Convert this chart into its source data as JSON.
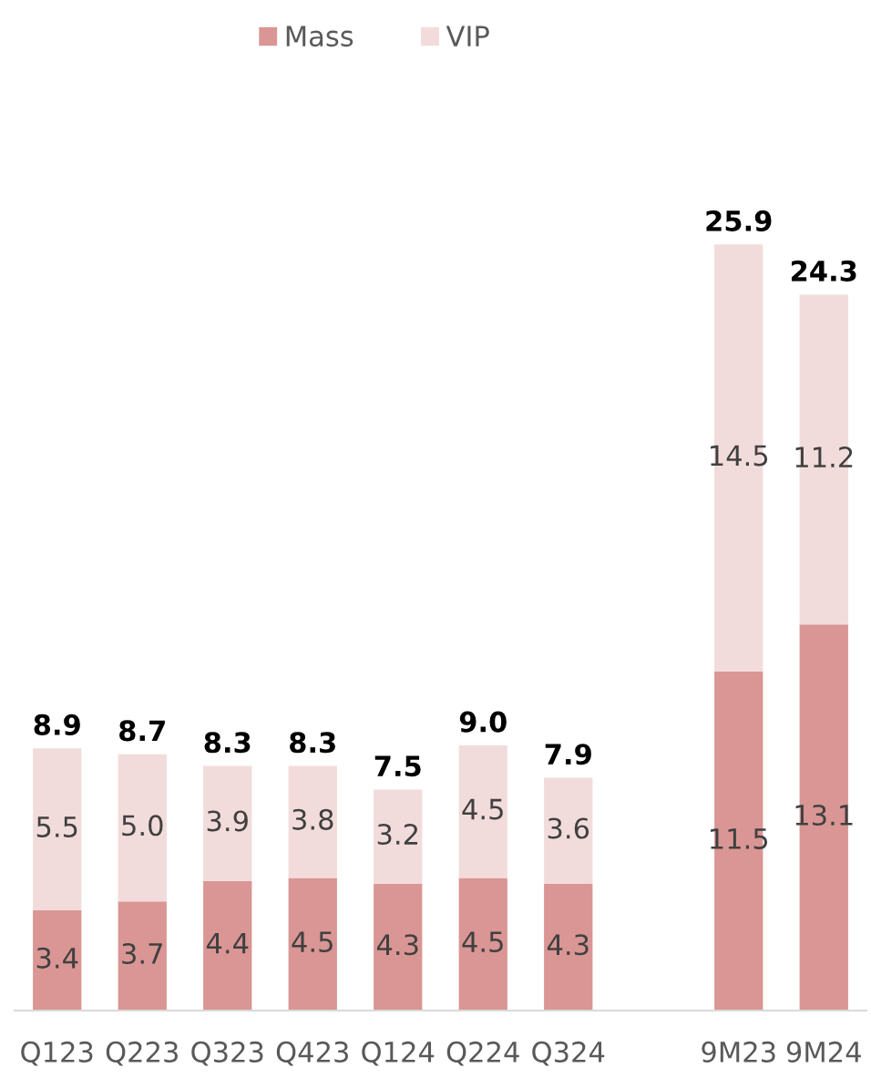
{
  "chart_data": {
    "type": "bar",
    "stacked": true,
    "tick_labels": "x",
    "legend": "top",
    "categories": [
      "Q123",
      "Q223",
      "Q323",
      "Q423",
      "Q124",
      "Q224",
      "Q324",
      null,
      "9M23",
      "9M24"
    ],
    "series": [
      {
        "name": "Mass",
        "color": "#d99694",
        "values": [
          3.4,
          3.7,
          4.4,
          4.5,
          4.3,
          4.5,
          4.3,
          null,
          11.5,
          13.1
        ],
        "value_labels": [
          "3.4",
          "3.7",
          "4.4",
          "4.5",
          "4.3",
          "4.5",
          "4.3",
          null,
          "11.5",
          "13.1"
        ]
      },
      {
        "name": "VIP",
        "color": "#f2dcdb",
        "values": [
          5.5,
          5.0,
          3.9,
          3.8,
          3.2,
          4.5,
          3.6,
          null,
          14.5,
          11.2
        ],
        "value_labels": [
          "5.5",
          "5.0",
          "3.9",
          "3.8",
          "3.2",
          "4.5",
          "3.6",
          null,
          "14.5",
          "11.2"
        ]
      }
    ],
    "totals": [
      "8.9",
      "8.7",
      "8.3",
      "8.3",
      "7.5",
      "9.0",
      "7.9",
      null,
      "25.9",
      "24.3"
    ]
  }
}
